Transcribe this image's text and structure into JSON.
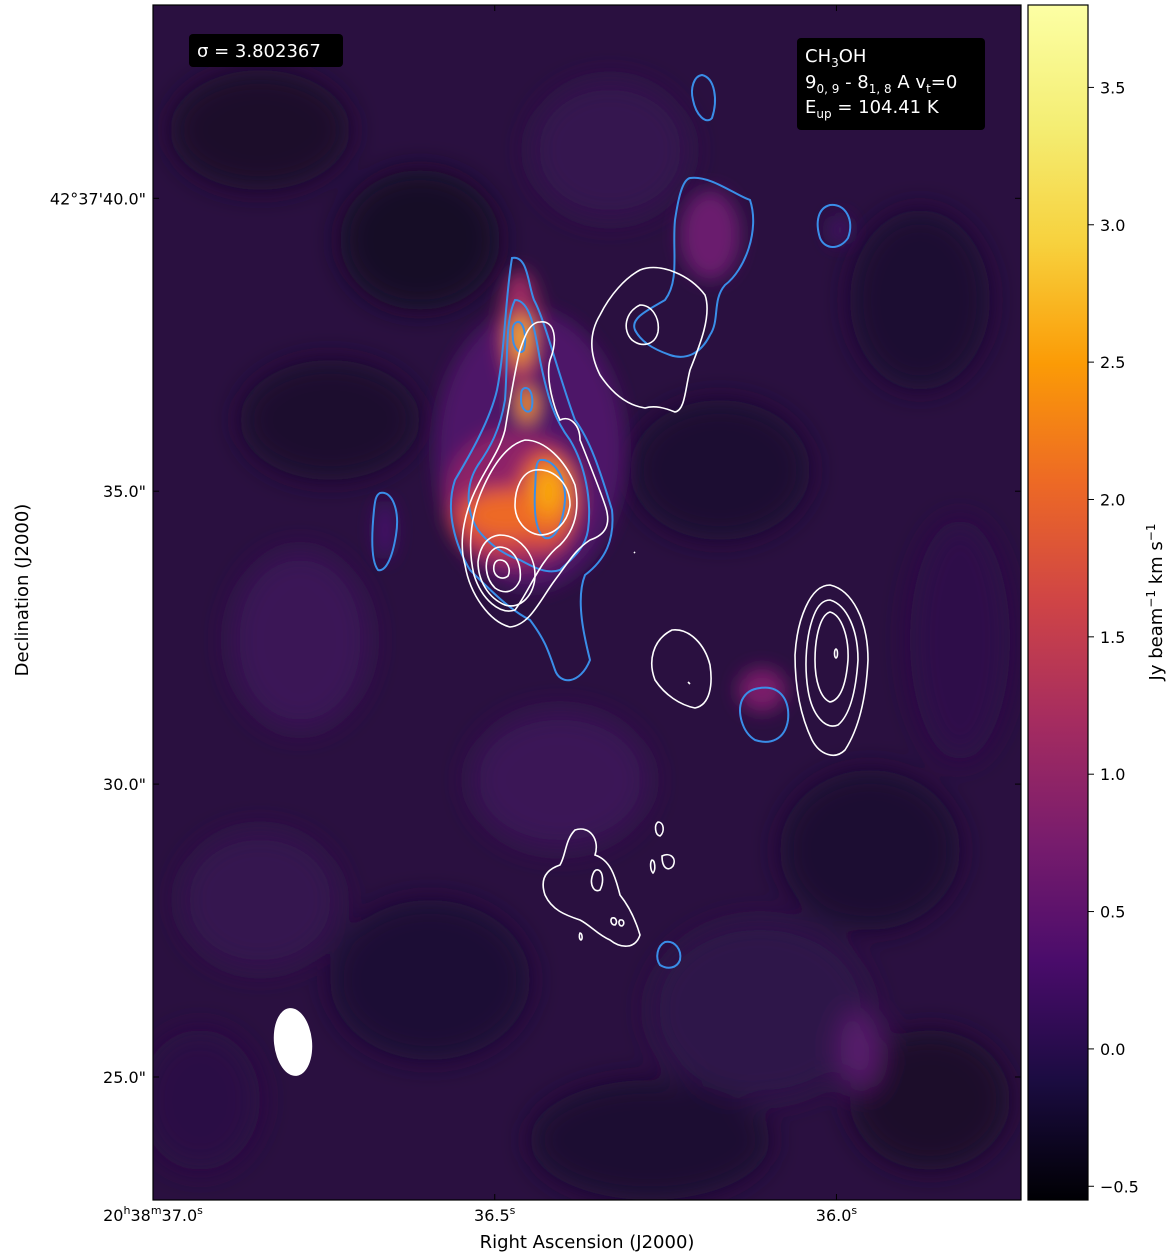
{
  "chart_data": {
    "type": "heatmap",
    "title": "",
    "xlabel": "Right Ascension (J2000)",
    "ylabel": "Declination (J2000)",
    "colorbar_label": "Jy beam⁻¹ km s⁻¹",
    "colormap": "inferno",
    "color_range": [
      -0.55,
      3.8
    ],
    "xlim_ra_sec": [
      37.0,
      35.73
    ],
    "ylim_dec_arcsec": [
      22.9,
      43.3
    ],
    "x_ticks": [
      {
        "value": 37.0,
        "label": "20h38m37.0s"
      },
      {
        "value": 36.5,
        "label": "36.5s"
      },
      {
        "value": 36.0,
        "label": "36.0s"
      }
    ],
    "y_ticks": [
      {
        "value": 40.0,
        "label": "42°37'40.0\""
      },
      {
        "value": 35.0,
        "label": "35.0\""
      },
      {
        "value": 30.0,
        "label": "30.0\""
      },
      {
        "value": 25.0,
        "label": "25.0\""
      }
    ],
    "colorbar_ticks": [
      {
        "value": 3.5,
        "label": "3.5"
      },
      {
        "value": 3.0,
        "label": "3.0"
      },
      {
        "value": 2.5,
        "label": "2.5"
      },
      {
        "value": 2.0,
        "label": "2.0"
      },
      {
        "value": 1.5,
        "label": "1.5"
      },
      {
        "value": 1.0,
        "label": "1.0"
      },
      {
        "value": 0.5,
        "label": "0.5"
      },
      {
        "value": 0.0,
        "label": "0.0"
      },
      {
        "value": -0.5,
        "label": "−0.5"
      }
    ],
    "sigma_label": "σ = 3.802367",
    "line_info": {
      "molecule": "CH3OH",
      "transition": "9(0,9) - 8(1,8) A vt=0",
      "upper_energy": "Eup = 104.41 K"
    },
    "emission_peaks": [
      {
        "ra": 36.455,
        "dec": 37.3,
        "value": 3.4
      },
      {
        "ra": 36.445,
        "dec": 36.3,
        "value": 3.0
      },
      {
        "ra": 36.41,
        "dec": 34.7,
        "value": 3.1
      },
      {
        "ra": 36.5,
        "dec": 34.5,
        "value": 2.6
      },
      {
        "ra": 36.18,
        "dec": 39.0,
        "value": 0.6
      },
      {
        "ra": 36.09,
        "dec": 30.8,
        "value": 0.6
      }
    ],
    "contours": {
      "blue_series": "blue contours",
      "white_series": "white contours"
    },
    "colors": {
      "blue_contour": "#3a8ee8",
      "white_contour": "#ffffff",
      "background": "#2a1040"
    }
  }
}
